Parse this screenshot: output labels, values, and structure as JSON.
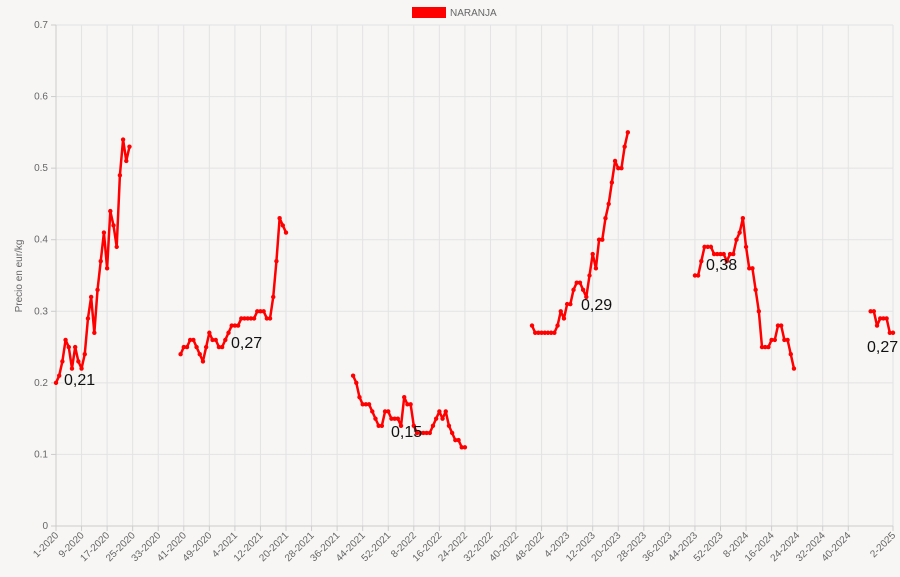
{
  "chart_data": {
    "type": "line",
    "y_label": "Precio en eur/kg",
    "categories": [
      "1-2020",
      null,
      null,
      null,
      null,
      null,
      null,
      null,
      "9-2020",
      null,
      null,
      null,
      null,
      null,
      null,
      null,
      "17-2020",
      null,
      null,
      null,
      null,
      null,
      null,
      null,
      "25-2020",
      null,
      null,
      null,
      null,
      null,
      null,
      null,
      "33-2020",
      null,
      null,
      null,
      null,
      null,
      null,
      null,
      "41-2020",
      null,
      null,
      null,
      null,
      null,
      null,
      null,
      "49-2020",
      null,
      null,
      null,
      null,
      null,
      null,
      null,
      "4-2021",
      null,
      null,
      null,
      null,
      null,
      null,
      null,
      "12-2021",
      null,
      null,
      null,
      null,
      null,
      null,
      null,
      "20-2021",
      null,
      null,
      null,
      null,
      null,
      null,
      null,
      "28-2021",
      null,
      null,
      null,
      null,
      null,
      null,
      null,
      "36-2021",
      null,
      null,
      null,
      null,
      null,
      null,
      null,
      "44-2021",
      null,
      null,
      null,
      null,
      null,
      null,
      null,
      "52-2021",
      null,
      null,
      null,
      null,
      null,
      null,
      null,
      "8-2022",
      null,
      null,
      null,
      null,
      null,
      null,
      null,
      "16-2022",
      null,
      null,
      null,
      null,
      null,
      null,
      null,
      "24-2022",
      null,
      null,
      null,
      null,
      null,
      null,
      null,
      "32-2022",
      null,
      null,
      null,
      null,
      null,
      null,
      null,
      "40-2022",
      null,
      null,
      null,
      null,
      null,
      null,
      null,
      "48-2022",
      null,
      null,
      null,
      null,
      null,
      null,
      null,
      "4-2023",
      null,
      null,
      null,
      null,
      null,
      null,
      null,
      "12-2023",
      null,
      null,
      null,
      null,
      null,
      null,
      null,
      "20-2023",
      null,
      null,
      null,
      null,
      null,
      null,
      null,
      "28-2023",
      null,
      null,
      null,
      null,
      null,
      null,
      null,
      "36-2023",
      null,
      null,
      null,
      null,
      null,
      null,
      null,
      "44-2023",
      null,
      null,
      null,
      null,
      null,
      null,
      null,
      "52-2023",
      null,
      null,
      null,
      null,
      null,
      null,
      null,
      "8-2024",
      null,
      null,
      null,
      null,
      null,
      null,
      null,
      "16-2024",
      null,
      null,
      null,
      null,
      null,
      null,
      null,
      "24-2024",
      null,
      null,
      null,
      null,
      null,
      null,
      null,
      "32-2024",
      null,
      null,
      null,
      null,
      null,
      null,
      null,
      "40-2024",
      null,
      null,
      null,
      null,
      null,
      null,
      null,
      null,
      null,
      null,
      null,
      null,
      null,
      "2-2025"
    ],
    "series": [
      {
        "name": "NARANJA",
        "color": "#ff0000",
        "values": [
          0.2,
          0.21,
          0.23,
          0.26,
          0.25,
          0.22,
          0.25,
          0.23,
          0.22,
          0.24,
          0.29,
          0.32,
          0.27,
          0.33,
          0.37,
          0.41,
          0.36,
          0.44,
          0.42,
          0.39,
          0.49,
          0.54,
          0.51,
          0.53,
          null,
          null,
          null,
          null,
          null,
          null,
          null,
          null,
          null,
          null,
          null,
          null,
          null,
          null,
          null,
          0.24,
          0.25,
          0.25,
          0.26,
          0.26,
          0.25,
          0.24,
          0.23,
          0.25,
          0.27,
          0.26,
          0.26,
          0.25,
          0.25,
          0.26,
          0.27,
          0.28,
          0.28,
          0.28,
          0.29,
          0.29,
          0.29,
          0.29,
          0.29,
          0.3,
          0.3,
          0.3,
          0.29,
          0.29,
          0.32,
          0.37,
          0.43,
          0.42,
          0.41,
          null,
          null,
          null,
          null,
          null,
          null,
          null,
          null,
          null,
          null,
          null,
          null,
          null,
          null,
          null,
          null,
          null,
          null,
          null,
          null,
          0.21,
          0.2,
          0.18,
          0.17,
          0.17,
          0.17,
          0.16,
          0.15,
          0.14,
          0.14,
          0.16,
          0.16,
          0.15,
          0.15,
          0.15,
          0.14,
          0.18,
          0.17,
          0.17,
          0.14,
          0.13,
          0.13,
          0.13,
          0.13,
          0.13,
          0.14,
          0.15,
          0.16,
          0.15,
          0.16,
          0.14,
          0.13,
          0.12,
          0.12,
          0.11,
          0.11,
          null,
          null,
          null,
          null,
          null,
          null,
          null,
          null,
          null,
          null,
          null,
          null,
          null,
          null,
          null,
          null,
          null,
          null,
          null,
          null,
          0.28,
          0.27,
          0.27,
          0.27,
          0.27,
          0.27,
          0.27,
          0.27,
          0.28,
          0.3,
          0.29,
          0.31,
          0.31,
          0.33,
          0.34,
          0.34,
          0.33,
          0.32,
          0.35,
          0.38,
          0.36,
          0.4,
          0.4,
          0.43,
          0.45,
          0.48,
          0.51,
          0.5,
          0.5,
          0.53,
          0.55,
          null,
          null,
          null,
          null,
          null,
          null,
          null,
          null,
          null,
          null,
          null,
          null,
          null,
          null,
          null,
          null,
          null,
          null,
          null,
          null,
          0.35,
          0.35,
          0.37,
          0.39,
          0.39,
          0.39,
          0.38,
          0.38,
          0.38,
          0.38,
          0.37,
          0.38,
          0.38,
          0.4,
          0.41,
          0.43,
          0.39,
          0.36,
          0.36,
          0.33,
          0.3,
          0.25,
          0.25,
          0.25,
          0.26,
          0.26,
          0.28,
          0.28,
          0.26,
          0.26,
          0.24,
          0.22,
          null,
          null,
          null,
          null,
          null,
          null,
          null,
          null,
          null,
          null,
          null,
          null,
          null,
          null,
          null,
          null,
          null,
          null,
          null,
          null,
          null,
          null,
          null,
          0.3,
          0.3,
          0.28,
          0.29,
          0.29,
          0.29,
          0.27,
          0.27
        ]
      }
    ],
    "annotations": [
      "0,21",
      "0,27",
      "0,15",
      "0,29",
      "0,38",
      "0,27"
    ],
    "ylim": [
      0,
      0.7
    ],
    "yticks": [
      0,
      0.1,
      0.2,
      0.3,
      0.4,
      0.5,
      0.6,
      0.7
    ],
    "grid": true,
    "legend": "top"
  }
}
